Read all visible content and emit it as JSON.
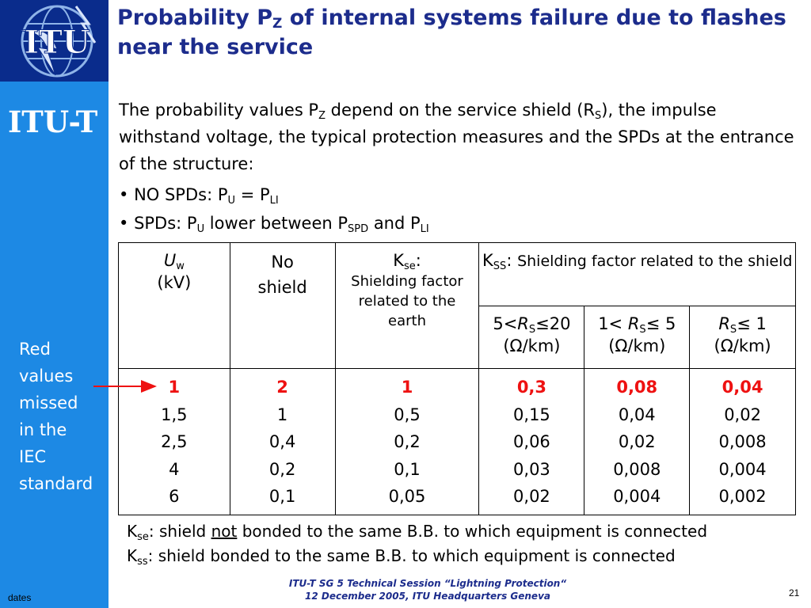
{
  "brand": {
    "label": "ITU-T",
    "logo_text": "ITU"
  },
  "title": {
    "part1": "Probability P",
    "sub": "Z",
    "part2": " of internal systems failure due to flashes near the service"
  },
  "intro": {
    "t1": "The probability values P",
    "s1": "Z",
    "t2": " depend on the service shield (R",
    "s2": "S",
    "t3": "), the impulse withstand voltage, the typical protection measures and the SPDs at the entrance of the structure:"
  },
  "bullets": {
    "b1": {
      "bullet": "•",
      "t1": " NO SPDs: P",
      "s1": "U",
      "t2": " = P",
      "s2": "LI"
    },
    "b2": {
      "bullet": "•",
      "t1": " SPDs: P",
      "s1": "U",
      "t2": " lower between P",
      "s2": "SPD",
      "t3": " and P",
      "s3": "LI"
    }
  },
  "table": {
    "headers": {
      "uw_main": "U",
      "uw_sub": "w",
      "uw_unit": "(kV)",
      "no_shield": "No shield",
      "kse_main": "K",
      "kse_sub": "se",
      "kse_colon": ":",
      "kse_desc": "Shielding factor related to the earth",
      "kss_main": "K",
      "kss_sub": "SS",
      "kss_colon": ":",
      "kss_desc": "Shielding factor related to the shield",
      "col1_pre": "5<",
      "col1_r": "R",
      "col1_sub": "S",
      "col1_post": "≤20",
      "col1_unit": "(Ω/km)",
      "col2_pre": "1< ",
      "col2_r": "R",
      "col2_sub": "S",
      "col2_post": "≤ 5",
      "col2_unit": "(Ω/km)",
      "col3_r": "R",
      "col3_sub": "S",
      "col3_post": "≤ 1",
      "col3_unit": "(Ω/km)"
    },
    "highlight_row": [
      "1",
      "2",
      "1",
      "0,3",
      "0,08",
      "0,04"
    ],
    "columns": [
      [
        "1,5",
        "2,5",
        "4",
        "6"
      ],
      [
        "1",
        "0,4",
        "0,2",
        "0,1"
      ],
      [
        "0,5",
        "0,2",
        "0,1",
        "0,05"
      ],
      [
        "0,15",
        "0,06",
        "0,03",
        "0,02"
      ],
      [
        "0,04",
        "0,02",
        "0,008",
        "0,004"
      ],
      [
        "0,02",
        "0,008",
        "0,004",
        "0,002"
      ]
    ]
  },
  "side_note": {
    "lines": [
      "Red",
      "values",
      "missed",
      "in the",
      "IEC",
      "standard"
    ]
  },
  "footnotes": {
    "f1": {
      "main": "K",
      "sub": "se",
      "t1": ": shield ",
      "u": "not",
      "t2": " bonded to the same B.B. to which equipment is connected"
    },
    "f2": {
      "main": "K",
      "sub": "ss",
      "t1": ": shield bonded to the same B.B. to which equipment is connected"
    }
  },
  "footer": {
    "line1": "ITU-T SG 5 Technical Session “Lightning Protection“",
    "line2": "12 December 2005, ITU Headquarters Geneva",
    "page": "21",
    "dates": "dates"
  },
  "colors": {
    "sidebar": "#1d89e4",
    "logo_bg": "#0a2c8c",
    "title": "#1c2c8c",
    "highlight": "#ee1111"
  }
}
